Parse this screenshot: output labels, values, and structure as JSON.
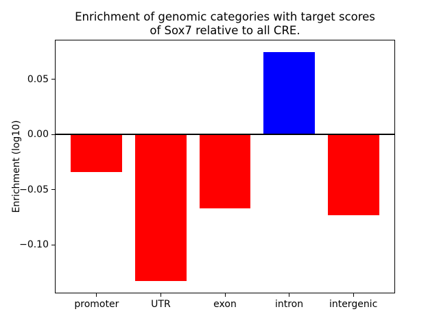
{
  "figure": {
    "title": "Enrichment of genomic categories with target scores\nof Sox7 relative to all CRE.",
    "ylabel": "Enrichment (log10)"
  },
  "chart_data": {
    "type": "bar",
    "title": "Enrichment of genomic categories with target scores of Sox7 relative to all CRE.",
    "xlabel": "",
    "ylabel": "Enrichment (log10)",
    "categories": [
      "promoter",
      "UTR",
      "exon",
      "intron",
      "intergenic"
    ],
    "values": [
      -0.034,
      -0.133,
      -0.067,
      0.075,
      -0.073
    ],
    "bar_colors": [
      "#ff0000",
      "#ff0000",
      "#ff0000",
      "#0000ff",
      "#ff0000"
    ],
    "positive_color": "#0000ff",
    "negative_color": "#ff0000",
    "ylim": [
      -0.1434,
      0.0854
    ],
    "yticks": [
      {
        "value": 0.05,
        "label": "0.05"
      },
      {
        "value": 0.0,
        "label": "0.00"
      },
      {
        "value": -0.05,
        "label": "−0.05"
      },
      {
        "value": -0.1,
        "label": "−0.10"
      }
    ],
    "zero_line": true,
    "grid": false,
    "legend": null
  }
}
